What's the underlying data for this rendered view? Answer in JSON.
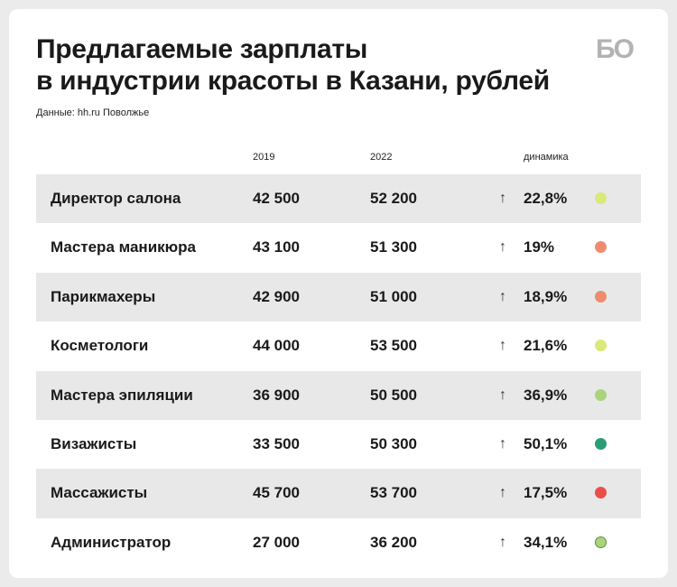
{
  "title_line1": "Предлагаемые зарплаты",
  "title_line2": "в индустрии красоты в Казани, рублей",
  "source": "Данные: hh.ru Поволжье",
  "logo": "БО",
  "chart_data": {
    "type": "table",
    "columns": [
      "2019",
      "2022",
      "динамика"
    ],
    "rows": [
      {
        "name": "Директор салона",
        "y2019": "42 500",
        "y2022": "52 200",
        "arrow": "↑",
        "change": "22,8%",
        "dot_color": "#dbe87a",
        "dot_border": ""
      },
      {
        "name": "Мастера маникюра",
        "y2019": "43 100",
        "y2022": "51 300",
        "arrow": "↑",
        "change": "19%",
        "dot_color": "#ee8c70",
        "dot_border": ""
      },
      {
        "name": "Парикмахеры",
        "y2019": "42 900",
        "y2022": "51 000",
        "arrow": "↑",
        "change": "18,9%",
        "dot_color": "#ee8c70",
        "dot_border": ""
      },
      {
        "name": "Косметологи",
        "y2019": "44 000",
        "y2022": "53 500",
        "arrow": "↑",
        "change": "21,6%",
        "dot_color": "#dbe87a",
        "dot_border": ""
      },
      {
        "name": "Мастера эпиляции",
        "y2019": "36 900",
        "y2022": "50 500",
        "arrow": "↑",
        "change": "36,9%",
        "dot_color": "#a9d47c",
        "dot_border": ""
      },
      {
        "name": "Визажисты",
        "y2019": "33 500",
        "y2022": "50 300",
        "arrow": "↑",
        "change": "50,1%",
        "dot_color": "#2a9d74",
        "dot_border": ""
      },
      {
        "name": "Массажисты",
        "y2019": "45 700",
        "y2022": "53 700",
        "arrow": "↑",
        "change": "17,5%",
        "dot_color": "#ea5047",
        "dot_border": ""
      },
      {
        "name": "Администратор",
        "y2019": "27 000",
        "y2022": "36 200",
        "arrow": "↑",
        "change": "34,1%",
        "dot_color": "#a9d47c",
        "dot_border": "#5c8f3e"
      }
    ]
  }
}
